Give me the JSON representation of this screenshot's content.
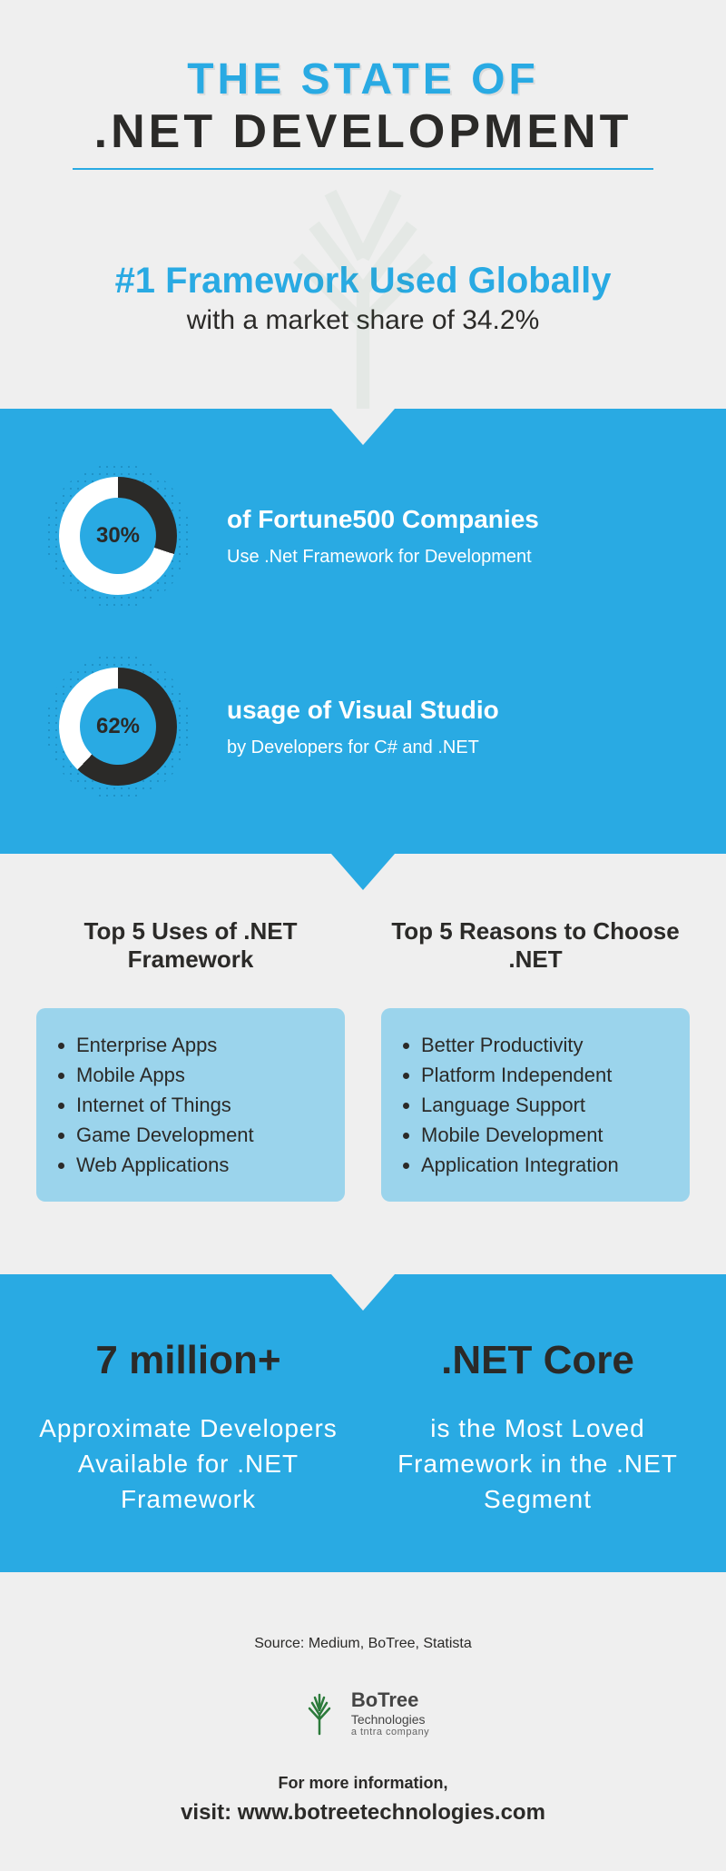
{
  "colors": {
    "primary_blue": "#29aae3",
    "light_blue": "#9bd4ec",
    "dark_text": "#2b2a28",
    "white": "#ffffff",
    "page_bg": "#efefef",
    "donut_dark": "#2b2a28"
  },
  "header": {
    "line1": "THE STATE OF",
    "line2": ".NET DEVELOPMENT"
  },
  "subheader": {
    "line1": "#1 Framework Used Globally",
    "line2": "with a market share of 34.2%"
  },
  "stats": [
    {
      "percent": 30,
      "label": "30%",
      "title": "of Fortune500 Companies",
      "desc": "Use .Net Framework for Development"
    },
    {
      "percent": 62,
      "label": "62%",
      "title": "usage of Visual Studio",
      "desc": "by Developers for C# and .NET"
    }
  ],
  "lists": {
    "left": {
      "title": "Top 5 Uses of .NET Framework",
      "items": [
        "Enterprise Apps",
        "Mobile Apps",
        "Internet of Things",
        "Game Development",
        "Web Applications"
      ]
    },
    "right": {
      "title": "Top 5 Reasons to Choose .NET",
      "items": [
        "Better Productivity",
        "Platform Independent",
        "Language Support",
        "Mobile Development",
        "Application Integration"
      ]
    }
  },
  "facts": {
    "left": {
      "big": "7 million+",
      "text": "Approximate Developers Available for .NET Framework"
    },
    "right": {
      "big": ".NET Core",
      "text": "is the Most Loved Framework in the .NET Segment"
    }
  },
  "footer": {
    "source": "Source: Medium, BoTree, Statista",
    "logo_main_bold": "Bo",
    "logo_main_rest": "Tree",
    "logo_sub": "Technologies",
    "logo_tag": "a tntra company",
    "more": "For more information,",
    "visit": "visit: www.botreetechnologies.com"
  },
  "typography": {
    "title_fontsize": 50,
    "sub1_fontsize": 40,
    "list_item_fontsize": 22,
    "fact_big_fontsize": 44
  }
}
